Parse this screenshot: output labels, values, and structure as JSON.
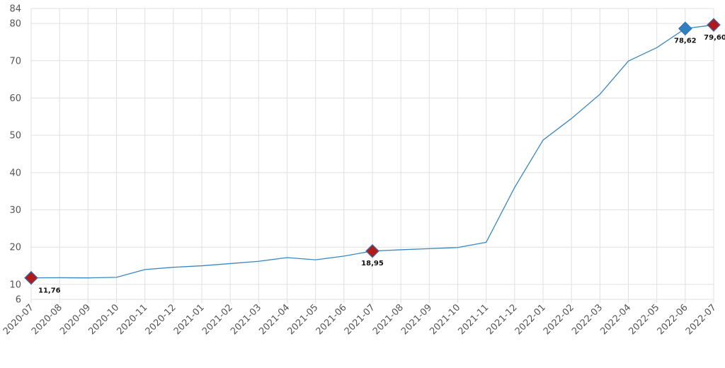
{
  "chart_data": {
    "type": "line",
    "title": "",
    "xlabel": "",
    "ylabel": "",
    "ylim": [
      6,
      84
    ],
    "y_ticks": [
      6,
      10,
      20,
      30,
      40,
      50,
      60,
      70,
      80,
      84
    ],
    "grid": true,
    "categories": [
      "2020-07",
      "2020-08",
      "2020-09",
      "2020-10",
      "2020-11",
      "2020-12",
      "2021-01",
      "2021-02",
      "2021-03",
      "2021-04",
      "2021-05",
      "2021-06",
      "2021-07",
      "2021-08",
      "2021-09",
      "2021-10",
      "2021-11",
      "2021-12",
      "2022-01",
      "2022-02",
      "2022-03",
      "2022-04",
      "2022-05",
      "2022-06",
      "2022-07"
    ],
    "series": [
      {
        "color": "#3a87c0",
        "values": [
          11.76,
          11.8,
          11.75,
          11.9,
          14.0,
          14.6,
          15.0,
          15.6,
          16.2,
          17.2,
          16.6,
          17.6,
          18.95,
          19.3,
          19.6,
          19.9,
          21.3,
          36.0,
          48.7,
          54.5,
          61.0,
          69.9,
          73.5,
          78.62,
          79.6
        ]
      }
    ],
    "markers": [
      {
        "index": 0,
        "value": 11.76,
        "label": "11,76",
        "color": "#b01a1a",
        "label_position": "below-right"
      },
      {
        "index": 12,
        "value": 18.95,
        "label": "18,95",
        "color": "#b01a1a",
        "label_position": "below"
      },
      {
        "index": 23,
        "value": 78.62,
        "label": "78,62",
        "color": "#2f80c0",
        "label_position": "below"
      },
      {
        "index": 24,
        "value": 79.6,
        "label": "79,60",
        "color": "#b01a1a",
        "label_position": "below-left"
      }
    ]
  }
}
